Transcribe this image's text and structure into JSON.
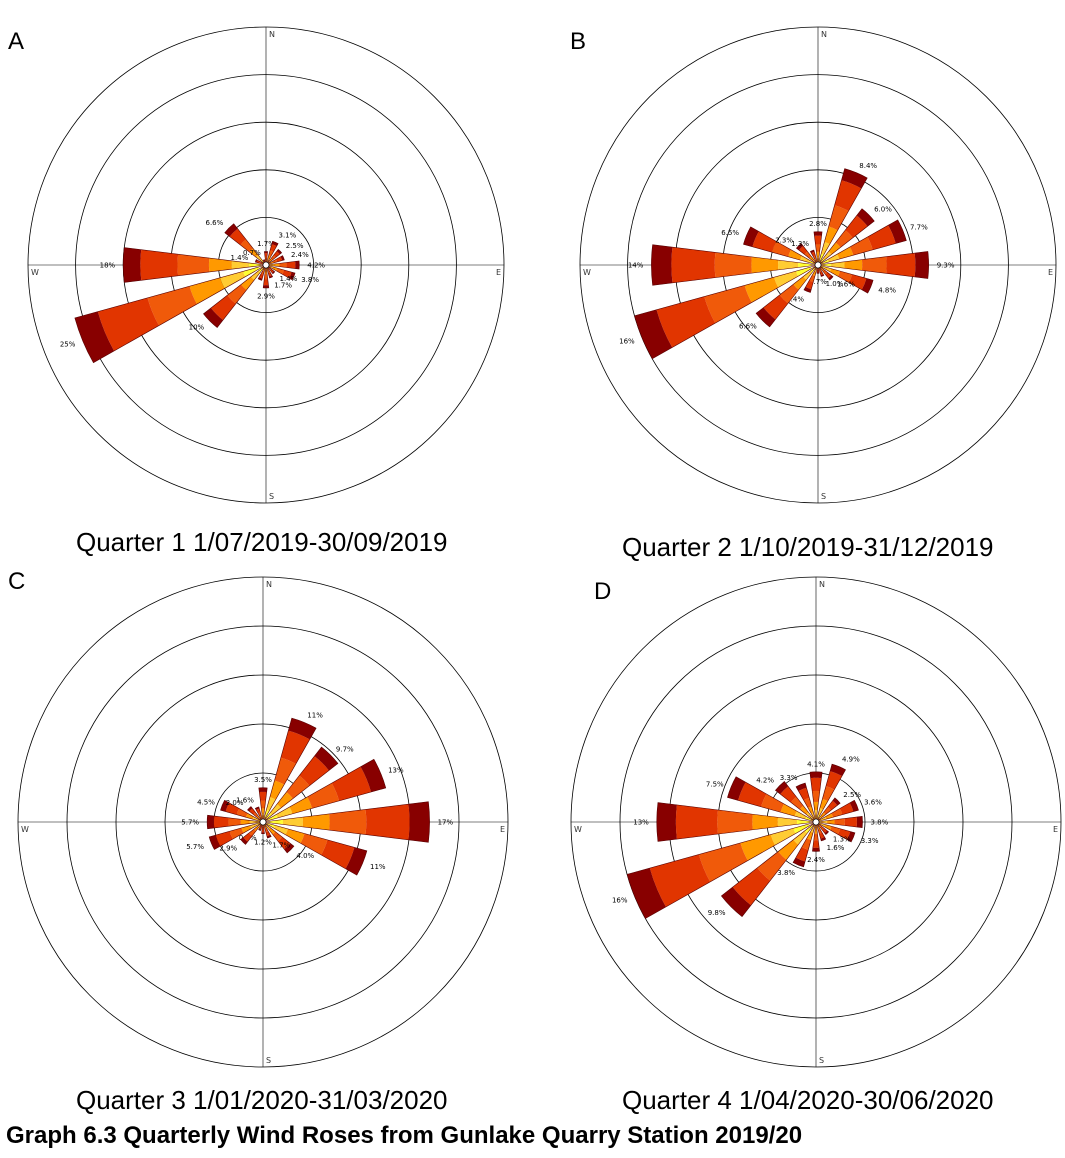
{
  "title": "Graph 6.3 Quarterly Wind Roses from Gunlake Quarry Station 2019/20",
  "colors": {
    "bands": [
      "#ffffc0",
      "#ffff33",
      "#ffcc33",
      "#ff9900",
      "#f05a0a",
      "#e13500",
      "#880000"
    ],
    "outline": "#5a0000",
    "rings": "#000000"
  },
  "chart_data": [
    {
      "type": "wind-rose",
      "panel_label": "A",
      "caption": "Quarter 1 1/07/2019-30/09/2019",
      "directions": [
        "N",
        "NNE",
        "NE",
        "ENE",
        "E",
        "ESE",
        "SE",
        "SSE",
        "S",
        "SSW",
        "SW",
        "WSW",
        "W",
        "WNW",
        "NW",
        "NNW"
      ],
      "axis_labels": {
        "n": "N",
        "e": "E",
        "s": "S",
        "w": "W"
      },
      "values": [
        1.7,
        3.1,
        2.5,
        2.4,
        4.2,
        3.8,
        1.4,
        1.7,
        2.9,
        2.0,
        10,
        25,
        18,
        1.4,
        6.6,
        0.7
      ],
      "labels": [
        "1.7%",
        "3.1%",
        "2.5%",
        "2.4%",
        "4.2%",
        "3.8%",
        "1.4%",
        "1.7%",
        "2.9%",
        "",
        "10%",
        "25%",
        "18%",
        "1.4%",
        "6.6%",
        "0.7%"
      ],
      "rmax": 30,
      "rings": [
        6,
        12,
        18,
        24,
        30
      ]
    },
    {
      "type": "wind-rose",
      "panel_label": "B",
      "caption": "Quarter 2 1/10/2019-31/12/2019",
      "directions": [
        "N",
        "NNE",
        "NE",
        "ENE",
        "E",
        "ESE",
        "SE",
        "SSE",
        "S",
        "SSW",
        "SW",
        "WSW",
        "W",
        "WNW",
        "NW",
        "NNW"
      ],
      "axis_labels": {
        "n": "N",
        "e": "E",
        "s": "S",
        "w": "W"
      },
      "values": [
        2.8,
        8.4,
        6.0,
        7.7,
        9.3,
        4.8,
        1.6,
        1.0,
        0.7,
        2.4,
        6.6,
        16,
        14,
        6.5,
        2.3,
        1.3
      ],
      "labels": [
        "2.8%",
        "8.4%",
        "6.0%",
        "7.7%",
        "9.3%",
        "4.8%",
        "1.6%",
        "1.0%",
        "0.7%",
        "2.4%",
        "6.6%",
        "16%",
        "14%",
        "6.5%",
        "2.3%",
        "1.3%"
      ],
      "rmax": 20,
      "rings": [
        4,
        8,
        12,
        16,
        20
      ]
    },
    {
      "type": "wind-rose",
      "panel_label": "C",
      "caption": "Quarter 3 1/01/2020-31/03/2020",
      "directions": [
        "N",
        "NNE",
        "NE",
        "ENE",
        "E",
        "ESE",
        "SE",
        "SSE",
        "S",
        "SSW",
        "SW",
        "WSW",
        "W",
        "WNW",
        "NW",
        "NNW"
      ],
      "axis_labels": {
        "n": "N",
        "e": "E",
        "s": "S",
        "w": "W"
      },
      "values": [
        3.5,
        11,
        9.7,
        13,
        17,
        11,
        4.0,
        1.7,
        1.2,
        0.9,
        2.9,
        5.7,
        5.7,
        4.5,
        2.0,
        1.6
      ],
      "labels": [
        "3.5%",
        "11%",
        "9.7%",
        "13%",
        "17%",
        "11%",
        "4.0%",
        "1.7%",
        "1.2%",
        "0.9%",
        "2.9%",
        "5.7%",
        "5.7%",
        "4.5%",
        "2.0%",
        "1.6%"
      ],
      "rmax": 25,
      "rings": [
        5,
        10,
        15,
        20,
        25
      ]
    },
    {
      "type": "wind-rose",
      "panel_label": "D",
      "caption": "Quarter 4 1/04/2020-30/06/2020",
      "directions": [
        "N",
        "NNE",
        "NE",
        "ENE",
        "E",
        "ESE",
        "SE",
        "SSE",
        "S",
        "SSW",
        "SW",
        "WSW",
        "W",
        "WNW",
        "NW",
        "NNW"
      ],
      "axis_labels": {
        "n": "N",
        "e": "E",
        "s": "S",
        "w": "W"
      },
      "values": [
        4.1,
        4.9,
        2.5,
        3.6,
        3.8,
        3.3,
        1.3,
        1.6,
        2.4,
        3.8,
        9.8,
        16,
        13,
        7.5,
        4.2,
        3.3
      ],
      "labels": [
        "4.1%",
        "4.9%",
        "2.5%",
        "3.6%",
        "3.8%",
        "3.3%",
        "1.3%",
        "1.6%",
        "2.4%",
        "3.8%",
        "9.8%",
        "16%",
        "13%",
        "7.5%",
        "4.2%",
        "3.3%"
      ],
      "rmax": 20,
      "rings": [
        4,
        8,
        12,
        16,
        20
      ]
    }
  ]
}
